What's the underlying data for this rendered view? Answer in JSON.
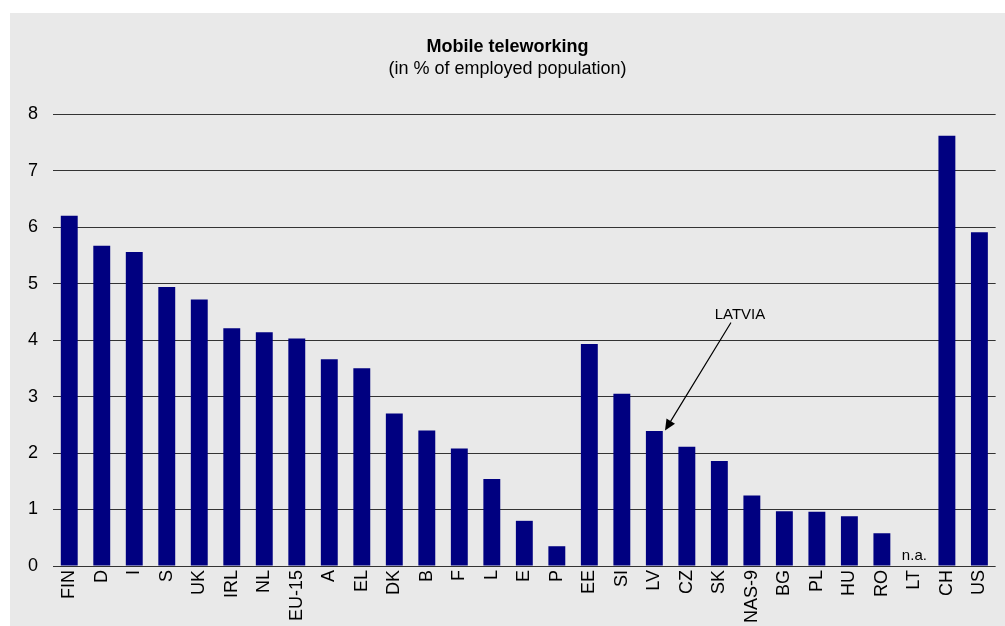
{
  "chart_data": {
    "type": "bar",
    "title": "Mobile teleworking",
    "subtitle": "(in % of employed population)",
    "categories": [
      "FIN",
      "D",
      "I",
      "S",
      "UK",
      "IRL",
      "NL",
      "EU-15",
      "A",
      "EL",
      "DK",
      "B",
      "F",
      "L",
      "E",
      "P",
      "EE",
      "SI",
      "LV",
      "CZ",
      "SK",
      "NAS-9",
      "BG",
      "PL",
      "HU",
      "RO",
      "LT",
      "CH",
      "US"
    ],
    "values": [
      6.2,
      5.67,
      5.56,
      4.94,
      4.72,
      4.21,
      4.14,
      4.03,
      3.66,
      3.5,
      2.7,
      2.4,
      2.08,
      1.54,
      0.8,
      0.35,
      3.93,
      3.05,
      2.39,
      2.11,
      1.86,
      1.25,
      0.97,
      0.96,
      0.88,
      0.58,
      null,
      7.62,
      5.91
    ],
    "color": "#000080",
    "ylim": [
      0,
      8
    ],
    "yticks": [
      0,
      1,
      2,
      3,
      4,
      5,
      6,
      7,
      8
    ],
    "grid": "y",
    "annotations": [
      "LATVIA",
      "n.a."
    ]
  }
}
